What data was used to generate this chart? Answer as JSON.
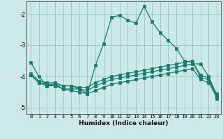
{
  "xlabel": "Humidex (Indice chaleur)",
  "bg_color": "#cce8e8",
  "grid_color": "#99cccc",
  "line_color": "#1a7a6a",
  "x_values": [
    0,
    1,
    2,
    3,
    4,
    5,
    6,
    7,
    8,
    9,
    10,
    11,
    12,
    13,
    14,
    15,
    16,
    17,
    18,
    19,
    20,
    21,
    22,
    23
  ],
  "line1": [
    -3.55,
    -4.0,
    -4.3,
    -4.25,
    -4.4,
    -4.4,
    -4.4,
    -4.55,
    -3.65,
    -2.95,
    -2.1,
    -2.05,
    -2.2,
    -2.3,
    -1.75,
    -2.25,
    -2.6,
    -2.85,
    -3.1,
    -3.5,
    -3.55,
    -3.95,
    -4.05,
    -4.7
  ],
  "line2": [
    -3.9,
    -4.15,
    -4.2,
    -4.2,
    -4.3,
    -4.3,
    -4.35,
    -4.35,
    -4.2,
    -4.1,
    -4.0,
    -3.95,
    -3.9,
    -3.85,
    -3.8,
    -3.75,
    -3.7,
    -3.65,
    -3.6,
    -3.55,
    -3.5,
    -4.05,
    -4.1,
    -4.55
  ],
  "line3": [
    -3.95,
    -4.2,
    -4.25,
    -4.25,
    -4.3,
    -4.3,
    -4.4,
    -4.45,
    -4.3,
    -4.2,
    -4.1,
    -4.05,
    -4.0,
    -3.95,
    -3.9,
    -3.85,
    -3.8,
    -3.75,
    -3.7,
    -3.65,
    -3.6,
    -3.6,
    -4.0,
    -4.6
  ],
  "line4": [
    -3.95,
    -4.2,
    -4.3,
    -4.3,
    -4.4,
    -4.45,
    -4.5,
    -4.55,
    -4.45,
    -4.35,
    -4.25,
    -4.2,
    -4.15,
    -4.1,
    -4.05,
    -4.0,
    -3.95,
    -3.9,
    -3.85,
    -3.8,
    -3.75,
    -4.1,
    -4.2,
    -4.65
  ],
  "ylim": [
    -5.2,
    -1.6
  ],
  "xlim": [
    -0.5,
    23.5
  ],
  "yticks": [
    -5,
    -4,
    -3,
    -2
  ],
  "xticks": [
    0,
    1,
    2,
    3,
    4,
    5,
    6,
    7,
    8,
    9,
    10,
    11,
    12,
    13,
    14,
    15,
    16,
    17,
    18,
    19,
    20,
    21,
    22,
    23
  ],
  "figsize": [
    3.2,
    2.0
  ],
  "dpi": 100
}
